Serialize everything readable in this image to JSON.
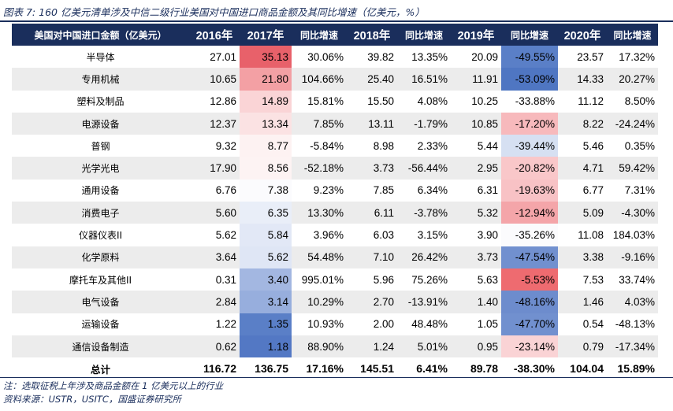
{
  "title": "图表 7: 160 亿美元清单涉及中信二级行业美国对中国进口商品金额及其同比增速（亿美元，%）",
  "header": [
    "美国对中国进口金额（亿美元）",
    "2016年",
    "2017年",
    "同比增速",
    "2018年",
    "同比增速",
    "2019年",
    "同比增速",
    "2020年",
    "同比增速"
  ],
  "rows": [
    {
      "name": "半导体",
      "v2016": "27.01",
      "v2017": "35.13",
      "y2017": "30.06%",
      "v2018": "39.82",
      "y2018": "13.35%",
      "v2019": "20.09",
      "y2019": "-49.55%",
      "v2020": "23.57",
      "y2020": "17.32%",
      "bg2017": "#e8616a",
      "bg2019": "#5a7fc7"
    },
    {
      "name": "专用机械",
      "v2016": "10.65",
      "v2017": "21.80",
      "y2017": "104.66%",
      "v2018": "25.40",
      "y2018": "16.51%",
      "v2019": "11.91",
      "y2019": "-53.09%",
      "v2020": "14.33",
      "y2020": "20.27%",
      "bg2017": "#f3a0a4",
      "bg2019": "#4f76c2"
    },
    {
      "name": "塑料及制品",
      "v2016": "12.86",
      "v2017": "14.89",
      "y2017": "15.81%",
      "v2018": "15.50",
      "y2018": "4.08%",
      "v2019": "10.25",
      "y2019": "-33.88%",
      "v2020": "11.12",
      "y2020": "8.50%",
      "bg2017": "#fad4d6",
      "bg2019": "#ffffff"
    },
    {
      "name": "电源设备",
      "v2016": "12.37",
      "v2017": "13.34",
      "y2017": "7.85%",
      "v2018": "13.11",
      "y2018": "-1.79%",
      "v2019": "10.85",
      "y2019": "-17.20%",
      "v2020": "8.22",
      "y2020": "-24.24%",
      "bg2017": "#fbe2e3",
      "bg2019": "#f7b9bc"
    },
    {
      "name": "普钢",
      "v2016": "9.32",
      "v2017": "8.77",
      "y2017": "-5.84%",
      "v2018": "8.98",
      "y2018": "2.33%",
      "v2019": "5.44",
      "y2019": "-39.44%",
      "v2020": "5.46",
      "y2020": "0.35%",
      "bg2017": "#fdf2f2",
      "bg2019": "#d6e0f2"
    },
    {
      "name": "光学光电",
      "v2016": "17.90",
      "v2017": "8.56",
      "y2017": "-52.18%",
      "v2018": "3.73",
      "y2018": "-56.44%",
      "v2019": "2.95",
      "y2019": "-20.82%",
      "v2020": "4.71",
      "y2020": "59.42%",
      "bg2017": "#fdf3f3",
      "bg2019": "#f9c7c9"
    },
    {
      "name": "通用设备",
      "v2016": "6.76",
      "v2017": "7.38",
      "y2017": "9.23%",
      "v2018": "7.85",
      "y2018": "6.34%",
      "v2019": "6.31",
      "y2019": "-19.63%",
      "v2020": "6.77",
      "y2020": "7.31%",
      "bg2017": "#fbfbfd",
      "bg2019": "#f8c2c5"
    },
    {
      "name": "消费电子",
      "v2016": "5.60",
      "v2017": "6.35",
      "y2017": "13.30%",
      "v2018": "6.11",
      "y2018": "-3.78%",
      "v2019": "5.32",
      "y2019": "-12.94%",
      "v2020": "5.09",
      "y2020": "-4.30%",
      "bg2017": "#e9eef8",
      "bg2019": "#f4a5a9"
    },
    {
      "name": "仪器仪表II",
      "v2016": "5.62",
      "v2017": "5.84",
      "y2017": "3.96%",
      "v2018": "6.03",
      "y2018": "3.15%",
      "v2019": "3.90",
      "y2019": "-35.26%",
      "v2020": "11.08",
      "y2020": "184.03%",
      "bg2017": "#e2e8f6",
      "bg2019": "#fbfbfd"
    },
    {
      "name": "化学原料",
      "v2016": "3.64",
      "v2017": "5.62",
      "y2017": "54.48%",
      "v2018": "7.10",
      "y2018": "26.42%",
      "v2019": "3.73",
      "y2019": "-47.54%",
      "v2020": "3.38",
      "y2020": "-9.16%",
      "bg2017": "#dfe6f5",
      "bg2019": "#7190cf"
    },
    {
      "name": "摩托车及其他II",
      "v2016": "0.31",
      "v2017": "3.40",
      "y2017": "995.01%",
      "v2018": "5.96",
      "y2018": "75.26%",
      "v2019": "5.63",
      "y2019": "-5.53%",
      "v2020": "7.53",
      "y2020": "33.74%",
      "bg2017": "#a3b7e1",
      "bg2019": "#ee6b70"
    },
    {
      "name": "电气设备",
      "v2016": "2.84",
      "v2017": "3.14",
      "y2017": "10.29%",
      "v2018": "2.70",
      "y2018": "-13.91%",
      "v2019": "1.40",
      "y2019": "-48.16%",
      "v2020": "1.46",
      "y2020": "4.03%",
      "bg2017": "#97aedd",
      "bg2019": "#6d8ccd"
    },
    {
      "name": "运输设备",
      "v2016": "1.22",
      "v2017": "1.35",
      "y2017": "10.93%",
      "v2018": "2.00",
      "y2018": "48.48%",
      "v2019": "1.05",
      "y2019": "-47.70%",
      "v2020": "0.54",
      "y2020": "-48.13%",
      "bg2017": "#5a7fc7",
      "bg2019": "#7190cf"
    },
    {
      "name": "通信设备制造",
      "v2016": "0.62",
      "v2017": "1.18",
      "y2017": "88.90%",
      "v2018": "1.24",
      "y2018": "5.01%",
      "v2019": "0.95",
      "y2019": "-23.14%",
      "v2020": "0.79",
      "y2020": "-17.34%",
      "bg2017": "#5378c4",
      "bg2019": "#fad3d5"
    }
  ],
  "total": {
    "name": "总计",
    "v2016": "116.72",
    "v2017": "136.75",
    "y2017": "17.16%",
    "v2018": "145.51",
    "y2018": "6.41%",
    "v2019": "89.78",
    "y2019": "-38.30%",
    "v2020": "104.04",
    "y2020": "15.89%"
  },
  "footnote": "注：选取征税上年涉及商品金额在 1 亿美元以上的行业",
  "source": "资料来源：USTR，USITC，国盛证券研究所"
}
